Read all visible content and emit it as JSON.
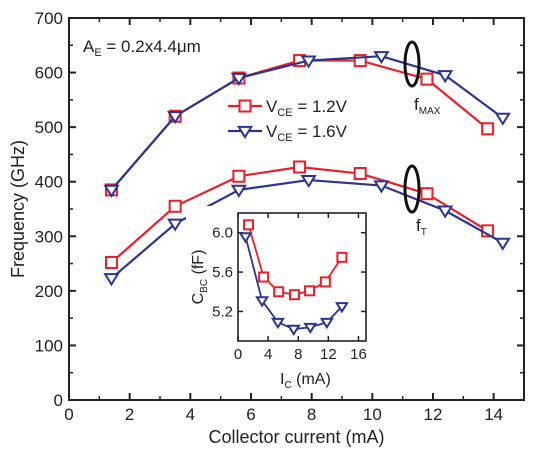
{
  "colors": {
    "red": "#e8202a",
    "blue": "#2b3590",
    "axis": "#222222"
  },
  "chart_data": {
    "type": "line",
    "xlabel": "Collector current (mA)",
    "ylabel": "Frequency (GHz)",
    "xlim": [
      0,
      15
    ],
    "ylim": [
      0,
      700
    ],
    "xticks": [
      "0",
      "2",
      "4",
      "6",
      "8",
      "10",
      "12",
      "14"
    ],
    "yticks": [
      "0",
      "100",
      "200",
      "300",
      "400",
      "500",
      "600",
      "700"
    ],
    "annotation": {
      "prefix": "A",
      "sub": "E",
      "text": " = 0.2x4.4μm"
    },
    "legend": [
      {
        "prefix": "V",
        "sub": "CE",
        "text": "= 1.2V",
        "color": "red",
        "marker": "square"
      },
      {
        "prefix": "V",
        "sub": "CE",
        "text": "= 1.6V",
        "color": "blue",
        "marker": "triangle-down"
      }
    ],
    "fmax_label": {
      "main": "f",
      "sub": "MAX"
    },
    "ft_label": {
      "main": "f",
      "sub": "T"
    },
    "series": [
      {
        "group": "fmax",
        "color": "red",
        "marker": "square",
        "x": [
          1.4,
          3.5,
          5.6,
          7.6,
          9.6,
          11.8,
          13.8
        ],
        "y": [
          385,
          520,
          590,
          622,
          622,
          588,
          497
        ]
      },
      {
        "group": "fmax",
        "color": "blue",
        "marker": "triangle-down",
        "x": [
          1.4,
          3.5,
          5.6,
          7.9,
          10.3,
          12.4,
          14.3
        ],
        "y": [
          385,
          520,
          590,
          622,
          630,
          595,
          517
        ]
      },
      {
        "group": "ft",
        "color": "red",
        "marker": "square",
        "x": [
          1.4,
          3.5,
          5.6,
          7.6,
          9.6,
          11.8,
          13.8
        ],
        "y": [
          252,
          355,
          410,
          427,
          415,
          378,
          310
        ]
      },
      {
        "group": "ft",
        "color": "blue",
        "marker": "triangle-down",
        "x": [
          1.4,
          3.5,
          5.6,
          7.9,
          10.3,
          12.4,
          14.3
        ],
        "y": [
          223,
          323,
          385,
          403,
          393,
          347,
          288
        ]
      }
    ],
    "inset": {
      "xlabel": {
        "main": "I",
        "sub": "C",
        "rest": " (mA)"
      },
      "ylabel": {
        "main": "C",
        "sub": "BC",
        "rest": " (fF)"
      },
      "xlim": [
        0,
        17
      ],
      "ylim": [
        4.9,
        6.2
      ],
      "xticks": [
        "0",
        "4",
        "8",
        "12",
        "16"
      ],
      "yticks": [
        "5.2",
        "5.6",
        "6.0"
      ],
      "series": [
        {
          "color": "red",
          "marker": "square",
          "x": [
            1.4,
            3.4,
            5.4,
            7.5,
            9.5,
            11.6,
            13.8
          ],
          "y": [
            6.08,
            5.55,
            5.4,
            5.37,
            5.41,
            5.5,
            5.75
          ]
        },
        {
          "color": "blue",
          "marker": "triangle-down",
          "x": [
            1.0,
            3.2,
            5.3,
            7.4,
            9.6,
            11.8,
            13.8
          ],
          "y": [
            5.96,
            5.31,
            5.09,
            5.02,
            5.04,
            5.09,
            5.25
          ]
        }
      ]
    }
  }
}
